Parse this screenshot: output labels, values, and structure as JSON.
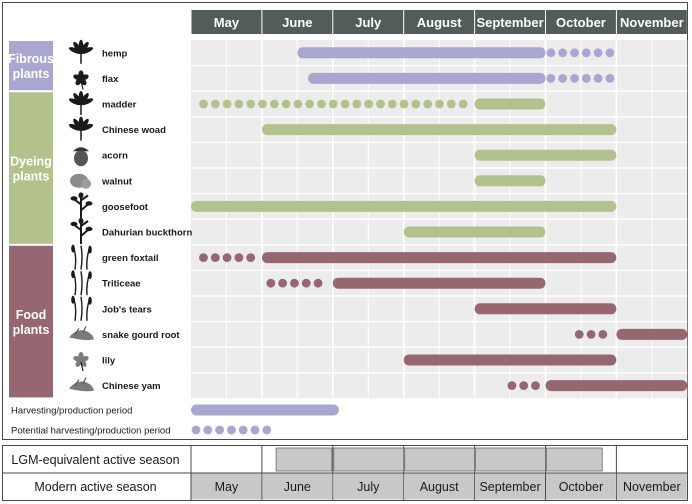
{
  "chart_data": {
    "type": "gantt",
    "months": [
      "May",
      "June",
      "July",
      "August",
      "September",
      "October",
      "November"
    ],
    "groups": [
      {
        "name_lines": [
          "Fibrous",
          "plants"
        ],
        "color": "#a9a6cf",
        "row_start": 0,
        "row_end": 1
      },
      {
        "name_lines": [
          "Dyeing",
          "plants"
        ],
        "color": "#b3c28c",
        "row_start": 2,
        "row_end": 7
      },
      {
        "name_lines": [
          "Food",
          "plants"
        ],
        "color": "#966771",
        "row_start": 8,
        "row_end": 13
      }
    ],
    "plants": [
      {
        "name": "hemp",
        "group": 0,
        "icon": "hemp-leaf-icon",
        "harvest": [
          [
            1.5,
            5.0
          ]
        ],
        "potential": [
          [
            5.0,
            6.0
          ]
        ]
      },
      {
        "name": "flax",
        "group": 0,
        "icon": "flax-flower-icon",
        "harvest": [
          [
            1.65,
            5.0
          ]
        ],
        "potential": [
          [
            5.0,
            6.0
          ]
        ]
      },
      {
        "name": "madder",
        "group": 1,
        "icon": "madder-plant-icon",
        "harvest": [
          [
            4.0,
            5.0
          ]
        ],
        "potential": [
          [
            0.1,
            4.0
          ]
        ]
      },
      {
        "name": "Chinese woad",
        "group": 1,
        "icon": "woad-plant-icon",
        "harvest": [
          [
            1.0,
            6.0
          ]
        ],
        "potential": []
      },
      {
        "name": "acorn",
        "group": 1,
        "icon": "acorn-icon",
        "harvest": [
          [
            4.0,
            6.0
          ]
        ],
        "potential": []
      },
      {
        "name": "walnut",
        "group": 1,
        "icon": "walnut-icon",
        "harvest": [
          [
            4.0,
            5.0
          ]
        ],
        "potential": []
      },
      {
        "name": "goosefoot",
        "group": 1,
        "icon": "goosefoot-plant-icon",
        "harvest": [
          [
            0.0,
            6.0
          ]
        ],
        "potential": []
      },
      {
        "name": "Dahurian buckthorn",
        "group": 1,
        "icon": "buckthorn-branch-icon",
        "harvest": [
          [
            3.0,
            5.0
          ]
        ],
        "potential": []
      },
      {
        "name": "green foxtail",
        "group": 2,
        "icon": "foxtail-grass-icon",
        "harvest": [
          [
            1.0,
            6.0
          ]
        ],
        "potential": [
          [
            0.1,
            1.0
          ]
        ]
      },
      {
        "name": "Triticeae",
        "group": 2,
        "icon": "wheat-icon",
        "harvest": [
          [
            2.0,
            5.0
          ]
        ],
        "potential": [
          [
            1.05,
            2.0
          ]
        ]
      },
      {
        "name": "Job's tears",
        "group": 2,
        "icon": "jobs-tears-plant-icon",
        "harvest": [
          [
            4.0,
            6.0
          ]
        ],
        "potential": []
      },
      {
        "name": "snake gourd root",
        "group": 2,
        "icon": "gourd-root-icon",
        "harvest": [
          [
            6.0,
            7.0
          ]
        ],
        "potential": [
          [
            5.4,
            6.0
          ]
        ]
      },
      {
        "name": "lily",
        "group": 2,
        "icon": "lily-bulb-icon",
        "harvest": [
          [
            3.0,
            6.0
          ]
        ],
        "potential": []
      },
      {
        "name": "Chinese yam",
        "group": 2,
        "icon": "yam-root-icon",
        "harvest": [
          [
            5.0,
            7.0
          ]
        ],
        "potential": [
          [
            4.45,
            5.0
          ]
        ]
      }
    ],
    "legend": {
      "harvest_label": "Harvesting/production period",
      "potential_label": "Potential harvesting/production period",
      "color": "#a9a6cf"
    },
    "seasons": {
      "lgm_label": "LGM-equivalent active season",
      "lgm_range": [
        1.2,
        5.8
      ],
      "modern_label": "Modern active season",
      "modern_range": [
        0,
        7
      ]
    },
    "colors": {
      "header_bg": "#525d59",
      "header_text": "#ffffff",
      "grid_bg": "#ececec",
      "grid_line": "#ffffff",
      "lgm_fill": "#c8c8c8",
      "modern_fill": "#c8c8c8"
    }
  }
}
